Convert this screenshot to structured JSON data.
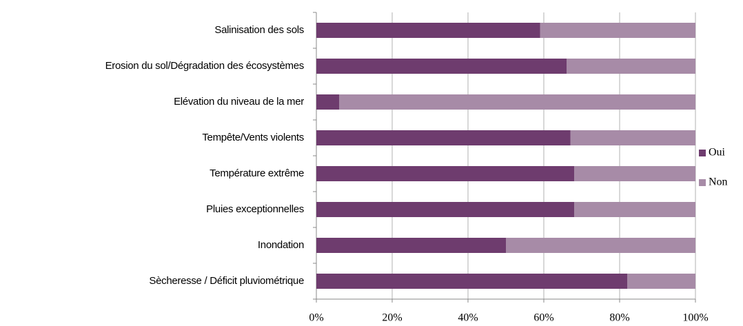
{
  "chart_data": {
    "type": "stacked_bar_horizontal",
    "categories": [
      "Salinisation des sols",
      "Erosion du sol/Dégradation des écosystèmes",
      "Elévation du niveau de la mer",
      "Tempête/Vents violents",
      "Température extrême",
      "Pluies exceptionnelles",
      "Inondation",
      "Sècheresse / Déficit pluviométrique"
    ],
    "series": [
      {
        "name": "Oui",
        "color": "#6e3c6e",
        "values": [
          59,
          66,
          6,
          67,
          68,
          68,
          50,
          82
        ]
      },
      {
        "name": "Non",
        "color": "#a78ba7",
        "values": [
          41,
          34,
          94,
          33,
          32,
          32,
          50,
          18
        ]
      }
    ],
    "xlim": [
      0,
      100
    ],
    "xticks": [
      {
        "value": 0,
        "label": "0%"
      },
      {
        "value": 20,
        "label": "20%"
      },
      {
        "value": 40,
        "label": "40%"
      },
      {
        "value": 60,
        "label": "60%"
      },
      {
        "value": 80,
        "label": "80%"
      },
      {
        "value": 100,
        "label": "100%"
      }
    ],
    "grid": true,
    "legend": "right"
  }
}
